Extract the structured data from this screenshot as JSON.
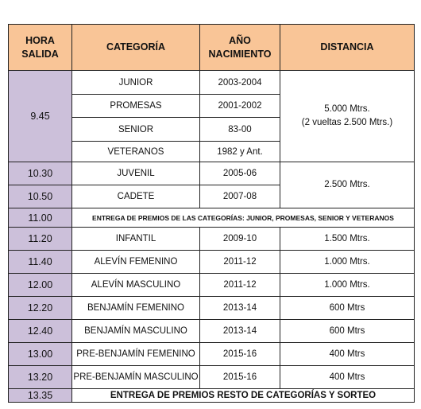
{
  "headers": {
    "hora_line1": "HORA",
    "hora_line2": "SALIDA",
    "categoria": "CATEGORÍA",
    "ano_line1": "AÑO",
    "ano_line2": "NACIMIENTO",
    "distancia": "DISTANCIA"
  },
  "group1": {
    "hora": "9.45",
    "distancia_line1": "5.000 Mtrs.",
    "distancia_line2": "(2 vueltas 2.500 Mtrs.)",
    "rows": [
      {
        "categoria": "JUNIOR",
        "ano": "2003-2004"
      },
      {
        "categoria": "PROMESAS",
        "ano": "2001-2002"
      },
      {
        "categoria": "SENIOR",
        "ano": "83-00"
      },
      {
        "categoria": "VETERANOS",
        "ano": "1982 y Ant."
      }
    ]
  },
  "group2": {
    "distancia": "2.500 Mtrs.",
    "rows": [
      {
        "hora": "10.30",
        "categoria": "JUVENIL",
        "ano": "2005-06"
      },
      {
        "hora": "10.50",
        "categoria": "CADETE",
        "ano": "2007-08"
      }
    ]
  },
  "entrega1": {
    "hora": "11.00",
    "texto": "ENTREGA DE PREMIOS DE LAS CATEGORÍAS: JUNIOR, PROMESAS, SENIOR Y VETERANOS"
  },
  "rows": [
    {
      "hora": "11.20",
      "categoria": "INFANTIL",
      "ano": "2009-10",
      "distancia": "1.500 Mtrs."
    },
    {
      "hora": "11.40",
      "categoria": "ALEVÍN FEMENINO",
      "ano": "2011-12",
      "distancia": "1.000 Mtrs."
    },
    {
      "hora": "12.00",
      "categoria": "ALEVÍN MASCULINO",
      "ano": "2011-12",
      "distancia": "1.000 Mtrs."
    },
    {
      "hora": "12.20",
      "categoria": "BENJAMÍN FEMENINO",
      "ano": "2013-14",
      "distancia": "600 Mtrs"
    },
    {
      "hora": "12.40",
      "categoria": "BENJAMÍN MASCULINO",
      "ano": "2013-14",
      "distancia": "600 Mtrs"
    },
    {
      "hora": "13.00",
      "categoria": "PRE-BENJAMÍN FEMENINO",
      "ano": "2015-16",
      "distancia": "400 Mtrs"
    },
    {
      "hora": "13.20",
      "categoria": "PRE-BENJAMÍN MASCULINO",
      "ano": "2015-16",
      "distancia": "400 Mtrs"
    }
  ],
  "entrega2": {
    "hora": "13.35",
    "texto": "ENTREGA DE PREMIOS RESTO DE CATEGORÍAS Y SORTEO"
  },
  "colors": {
    "header_bg": "#f9c597",
    "hora_bg": "#ccc0da",
    "border": "#222222"
  }
}
